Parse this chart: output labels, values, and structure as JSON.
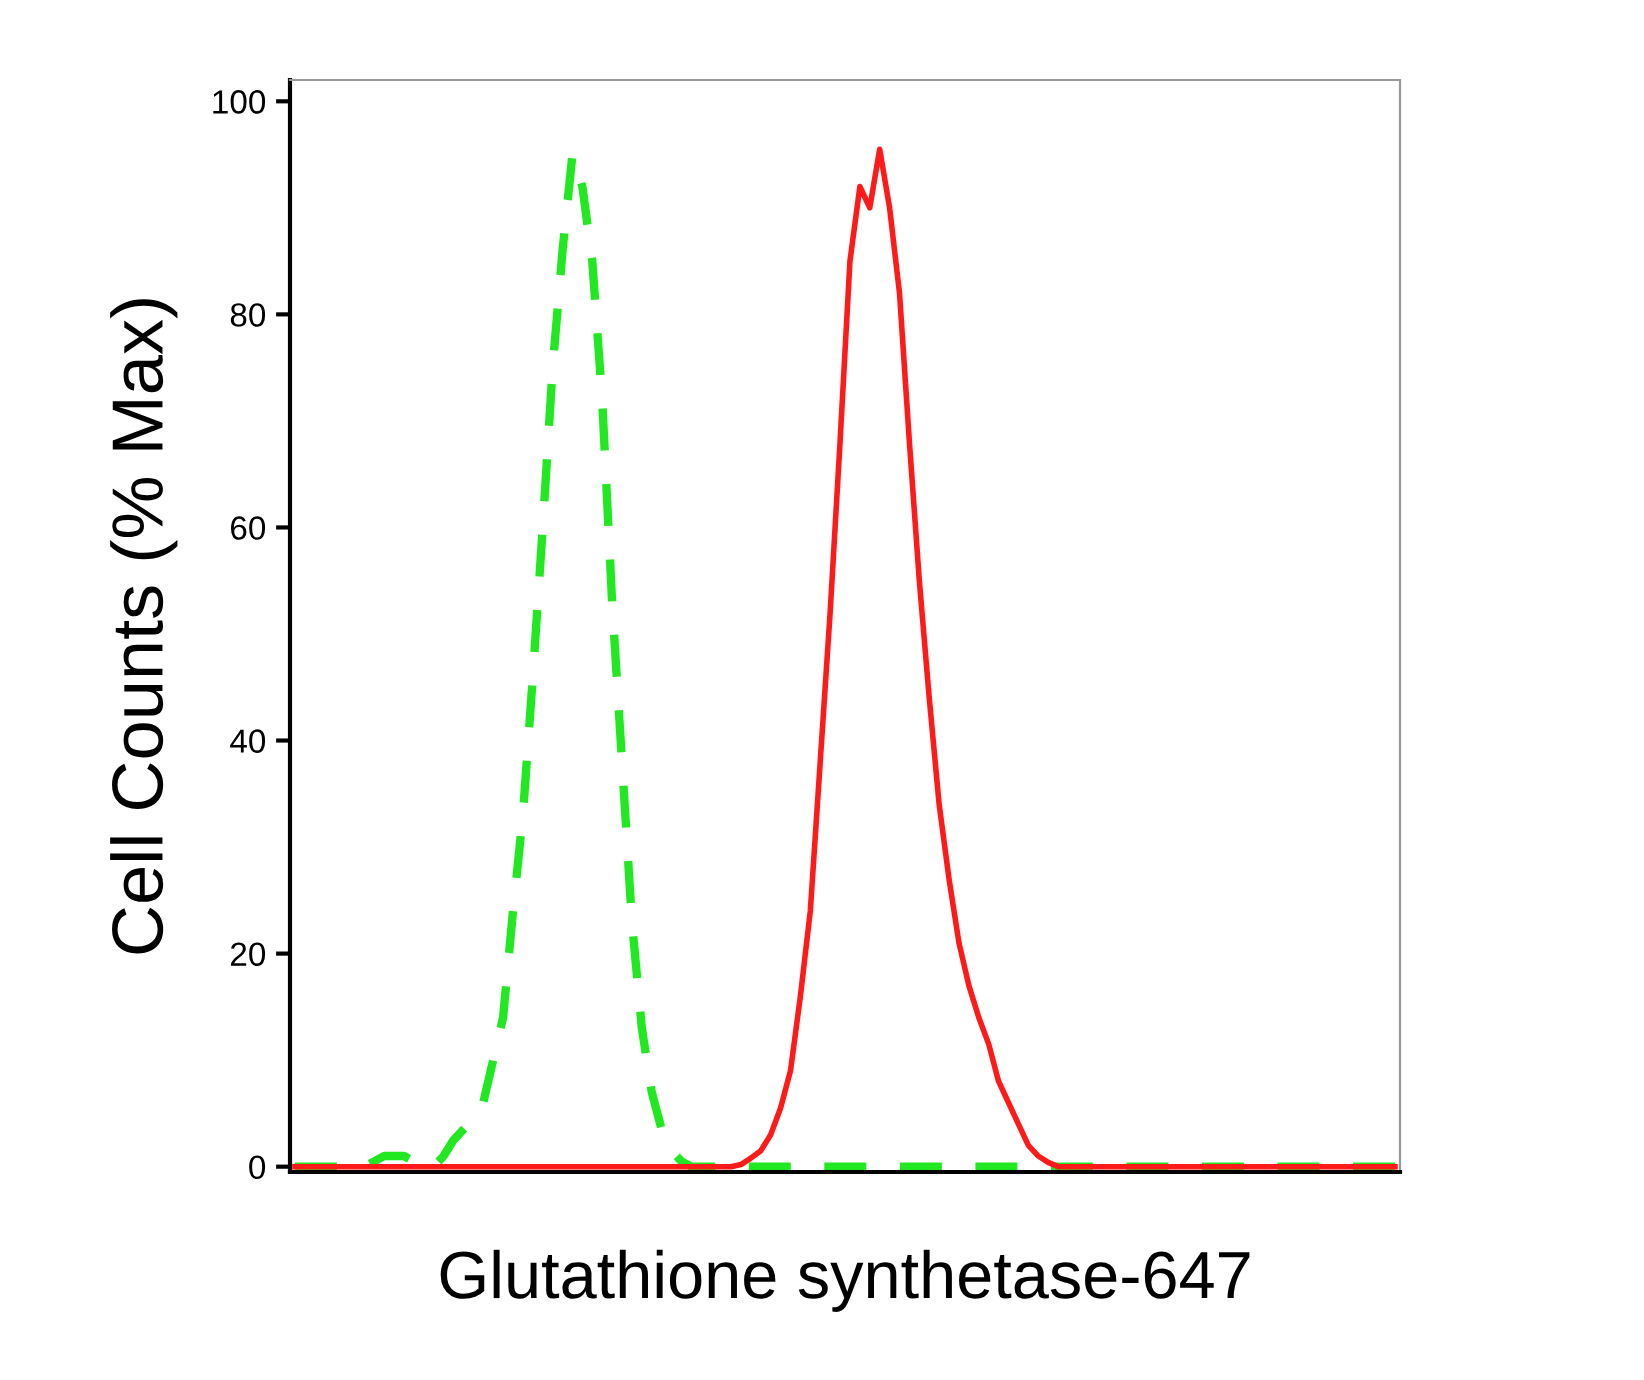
{
  "chart_data": {
    "type": "line",
    "xlabel": "Glutathione synthetase-647",
    "ylabel": "Cell Counts (% Max)",
    "categories": [
      null,
      null,
      null,
      null,
      null,
      null,
      null,
      null,
      null,
      null,
      null,
      null,
      null,
      null,
      null,
      null,
      null,
      null,
      null,
      null,
      null,
      null,
      null,
      null,
      null,
      null,
      null,
      null,
      null,
      null,
      null,
      null,
      null,
      null,
      null,
      null,
      null,
      null,
      null,
      null,
      null,
      null,
      null,
      null,
      null,
      null,
      null,
      null,
      null,
      null,
      null,
      null,
      null,
      null,
      null,
      null,
      null,
      null,
      null,
      null,
      null,
      null,
      null,
      null,
      null,
      null,
      null,
      null,
      null,
      null,
      null,
      null,
      null,
      null,
      null,
      null,
      null,
      null,
      null,
      null,
      null,
      null,
      null,
      null,
      null,
      null,
      null,
      null,
      null,
      null,
      null,
      null,
      null,
      null,
      null,
      null,
      null,
      null,
      null,
      null,
      null,
      null,
      null,
      null,
      null,
      null,
      null,
      null,
      null,
      null,
      null,
      null
    ],
    "series": [
      {
        "color": "#22e822",
        "line_style": "dashed",
        "values": [
          0,
          0,
          0,
          0,
          0,
          0,
          0,
          0,
          0.5,
          1,
          1,
          1,
          0.5,
          0,
          0,
          1,
          2.5,
          3.5,
          4.5,
          6,
          10,
          14,
          24,
          33,
          46,
          60,
          75,
          86,
          95,
          92,
          85,
          72,
          53,
          38,
          23,
          13,
          7,
          3.5,
          1.5,
          0.5,
          0,
          0,
          0,
          0,
          0,
          0,
          0,
          0,
          0,
          0,
          0,
          0,
          0,
          0,
          0,
          0,
          0,
          0,
          0,
          0,
          0,
          0,
          0,
          0,
          0,
          0,
          0,
          0,
          0,
          0,
          0,
          0,
          0,
          0,
          0,
          0,
          0,
          0,
          0,
          0,
          0,
          0,
          0,
          0,
          0,
          0,
          0,
          0,
          0,
          0,
          0,
          0,
          0,
          0,
          0,
          0,
          0,
          0,
          0,
          0,
          0,
          0,
          0,
          0,
          0,
          0,
          0,
          0,
          0,
          0,
          0,
          0
        ]
      },
      {
        "color": "#ff1a1a",
        "line_style": "solid",
        "values": [
          0,
          0,
          0,
          0,
          0,
          0,
          0,
          0,
          0,
          0,
          0,
          0,
          0,
          0,
          0,
          0,
          0,
          0,
          0,
          0,
          0,
          0,
          0,
          0,
          0,
          0,
          0,
          0,
          0,
          0,
          0,
          0,
          0,
          0,
          0,
          0,
          0,
          0,
          0,
          0,
          0,
          0,
          0,
          0,
          0,
          0.2,
          0.8,
          1.5,
          3,
          5.5,
          9,
          16,
          24,
          38,
          52,
          68,
          85,
          92,
          90,
          95.5,
          90,
          82,
          68,
          55,
          44,
          34,
          27,
          21,
          17,
          14,
          11.5,
          8,
          6,
          4,
          2,
          1,
          0.4,
          0,
          0,
          0,
          0,
          0,
          0,
          0,
          0,
          0,
          0,
          0,
          0,
          0,
          0,
          0,
          0,
          0,
          0,
          0,
          0,
          0,
          0,
          0,
          0,
          0,
          0,
          0,
          0,
          0,
          0,
          0,
          0,
          0,
          0,
          0
        ]
      }
    ],
    "ylim": [
      -0.5,
      102
    ],
    "yticks": [
      0,
      20,
      40,
      60,
      80,
      100
    ],
    "tick_labels": "y",
    "grid": false,
    "legend": false,
    "marker": "none"
  }
}
